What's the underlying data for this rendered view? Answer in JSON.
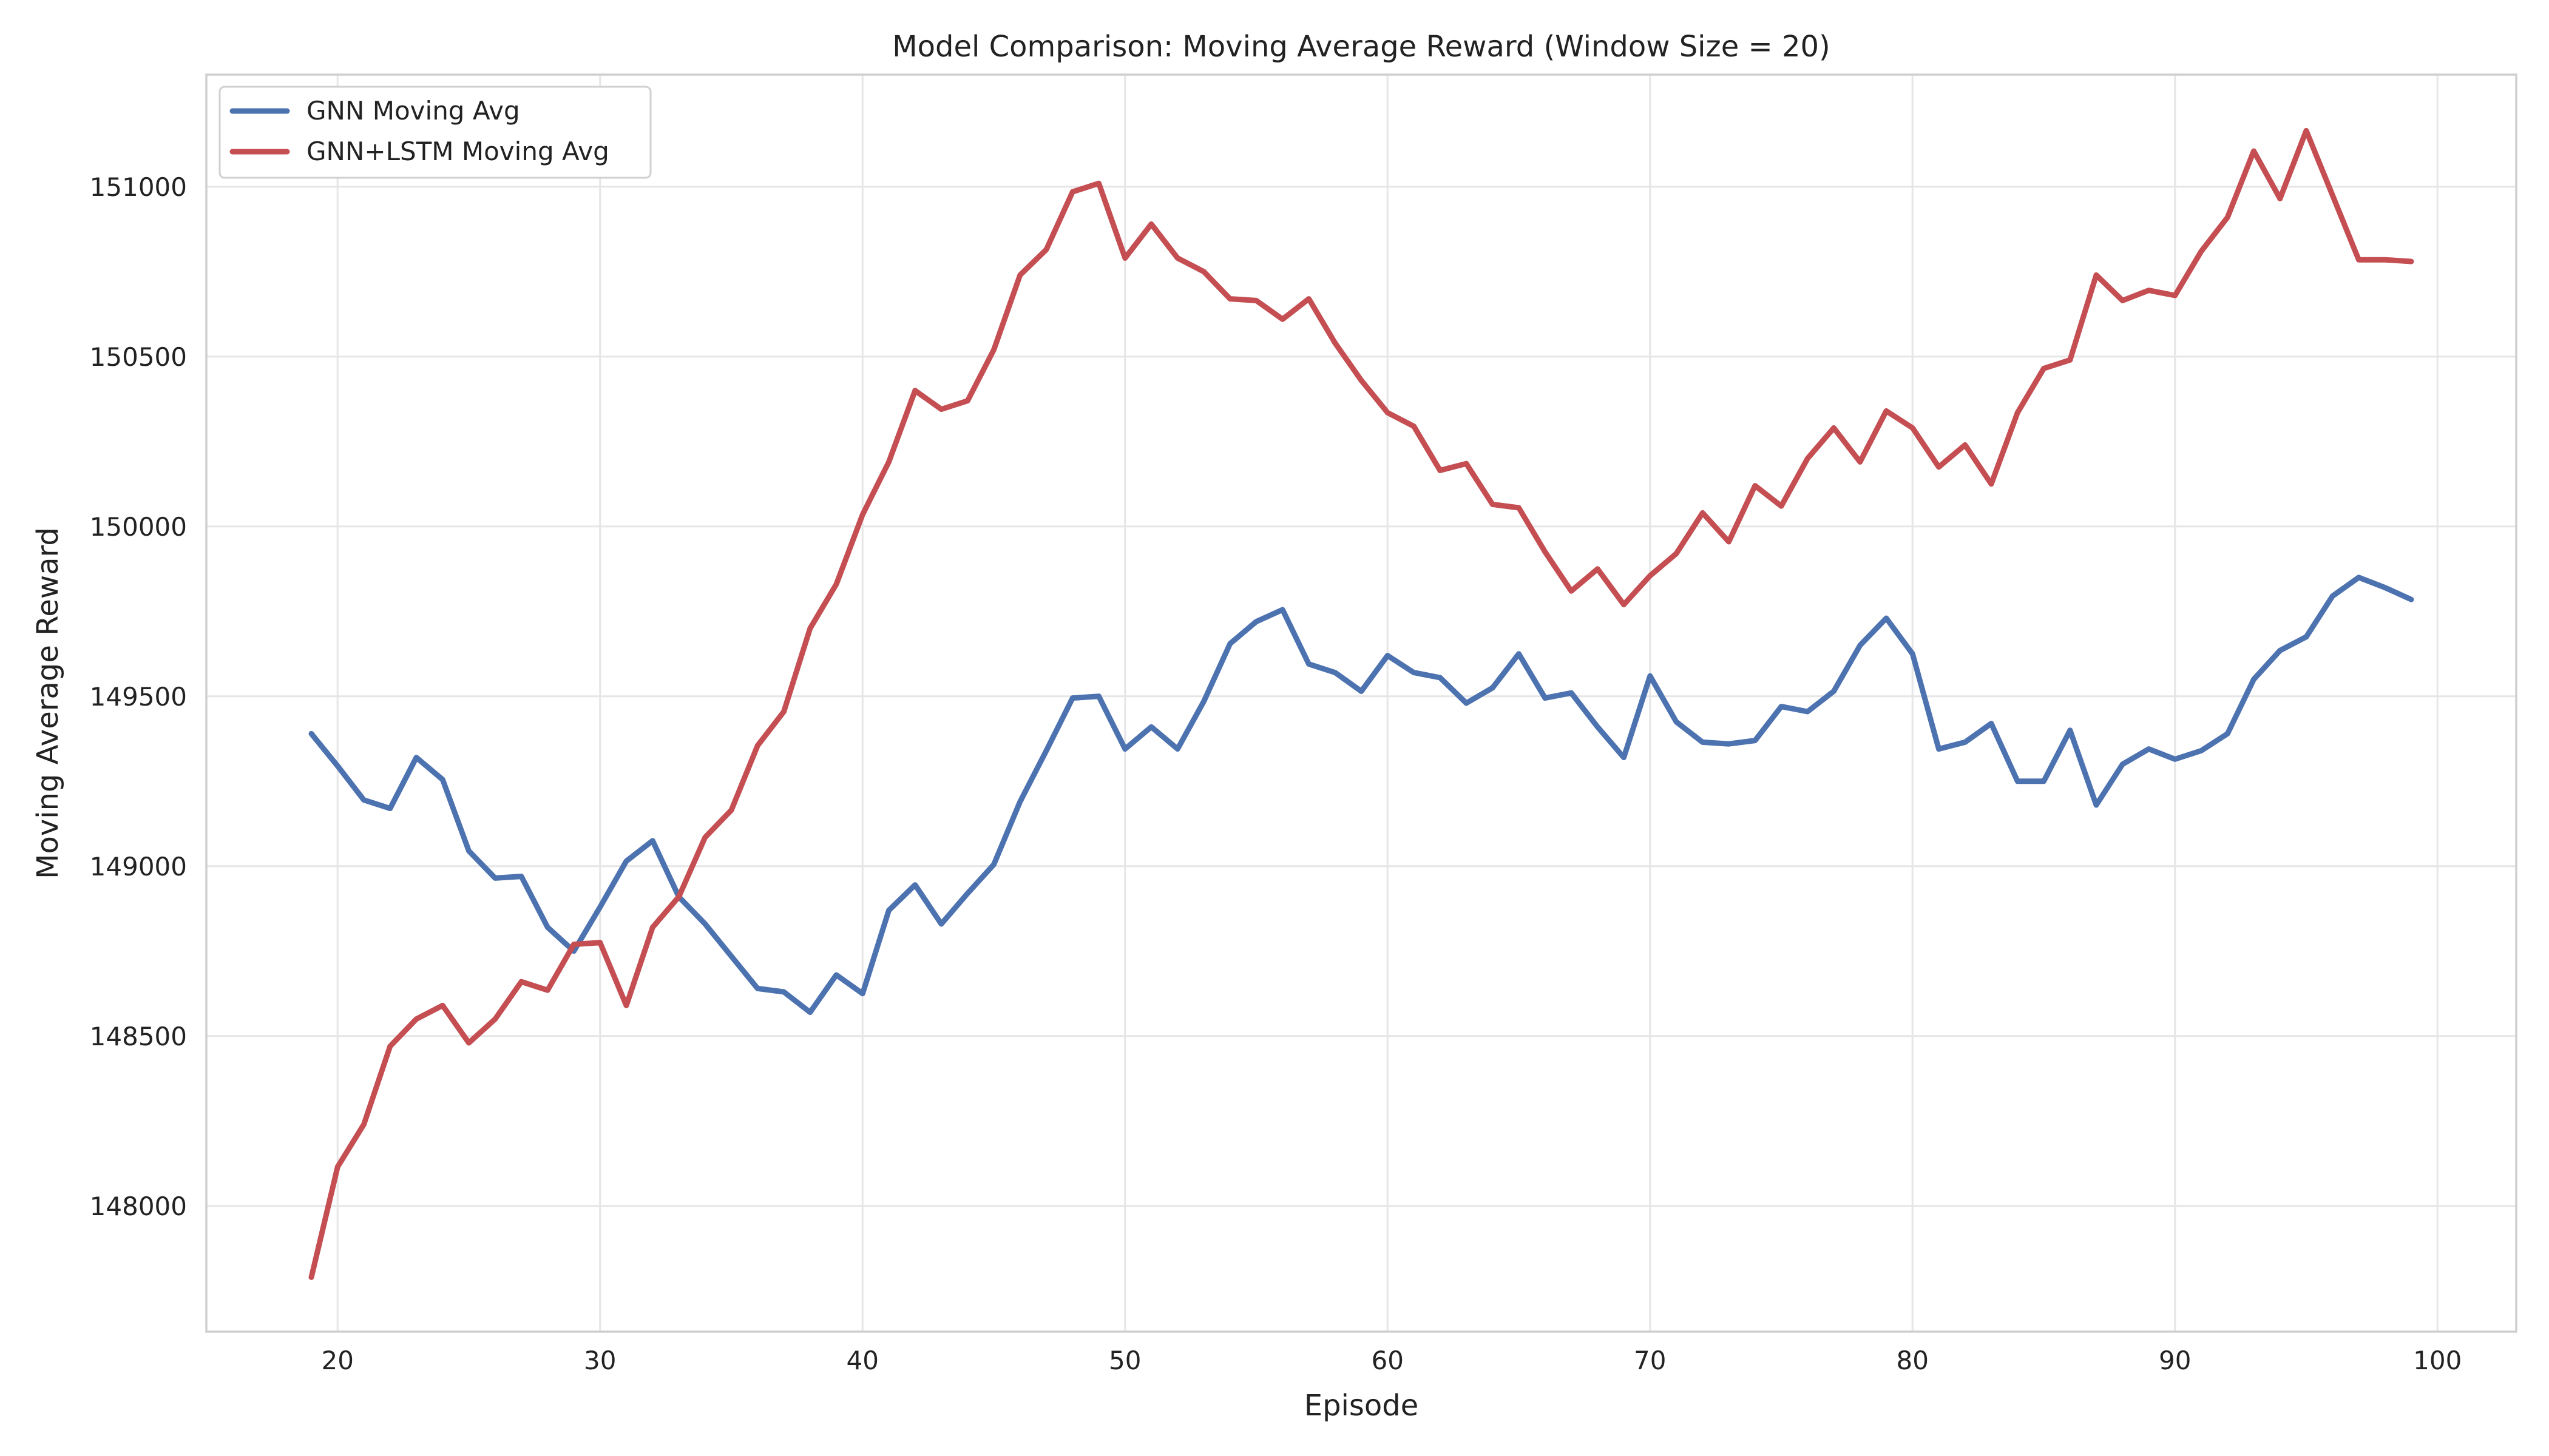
{
  "chart_data": {
    "type": "line",
    "title": "Model Comparison: Moving Average Reward (Window Size = 20)",
    "xlabel": "Episode",
    "ylabel": "Moving Average Reward",
    "xlim": [
      15,
      103
    ],
    "ylim": [
      147630,
      151330
    ],
    "xticks": [
      20,
      30,
      40,
      50,
      60,
      70,
      80,
      90,
      100
    ],
    "yticks": [
      148000,
      148500,
      149000,
      149500,
      150000,
      150500,
      151000
    ],
    "grid": true,
    "legend_position": "top-left",
    "x": [
      19,
      20,
      21,
      22,
      23,
      24,
      25,
      26,
      27,
      28,
      29,
      30,
      31,
      32,
      33,
      34,
      35,
      36,
      37,
      38,
      39,
      40,
      41,
      42,
      43,
      44,
      45,
      46,
      47,
      48,
      49,
      50,
      51,
      52,
      53,
      54,
      55,
      56,
      57,
      58,
      59,
      60,
      61,
      62,
      63,
      64,
      65,
      66,
      67,
      68,
      69,
      70,
      71,
      72,
      73,
      74,
      75,
      76,
      77,
      78,
      79,
      80,
      81,
      82,
      83,
      84,
      85,
      86,
      87,
      88,
      89,
      90,
      91,
      92,
      93,
      94,
      95,
      96,
      97,
      98,
      99
    ],
    "series": [
      {
        "name": "GNN Moving Avg",
        "color": "#4c72b0",
        "values": [
          149390,
          149295,
          149195,
          149170,
          149320,
          149255,
          149045,
          148965,
          148970,
          148820,
          148750,
          148880,
          149015,
          149075,
          148910,
          148830,
          148735,
          148640,
          148630,
          148570,
          148680,
          148625,
          148870,
          148945,
          148830,
          148920,
          149005,
          149190,
          149340,
          149495,
          149500,
          149345,
          149410,
          149345,
          149485,
          149655,
          149720,
          149755,
          149595,
          149570,
          149515,
          149620,
          149570,
          149555,
          149480,
          149525,
          149625,
          149495,
          149510,
          149410,
          149320,
          149560,
          149425,
          149365,
          149360,
          149370,
          149470,
          149455,
          149515,
          149650,
          149730,
          149625,
          149345,
          149365,
          149420,
          149250,
          149250,
          149400,
          149180,
          149300,
          149345,
          149315,
          149340,
          149390,
          149550,
          149635,
          149675,
          149795,
          149850,
          149820,
          149785
        ]
      },
      {
        "name": "GNN+LSTM Moving Avg",
        "color": "#c44e52",
        "values": [
          147790,
          148115,
          148240,
          148470,
          148550,
          148590,
          148480,
          148550,
          148660,
          148635,
          148770,
          148775,
          148590,
          148820,
          148910,
          149085,
          149165,
          149355,
          149455,
          149700,
          149830,
          150035,
          150190,
          150400,
          150345,
          150370,
          150520,
          150740,
          150815,
          150985,
          151010,
          150790,
          150890,
          150790,
          150750,
          150670,
          150665,
          150610,
          150670,
          150540,
          150430,
          150335,
          150295,
          150165,
          150185,
          150065,
          150055,
          149925,
          149810,
          149875,
          149770,
          149855,
          149920,
          150040,
          149955,
          150120,
          150060,
          150200,
          150290,
          150190,
          150340,
          150290,
          150175,
          150240,
          150125,
          150335,
          150465,
          150490,
          150740,
          150665,
          150695,
          150680,
          150810,
          150910,
          151105,
          150965,
          151165,
          150975,
          150785,
          150785,
          150780
        ]
      }
    ]
  }
}
